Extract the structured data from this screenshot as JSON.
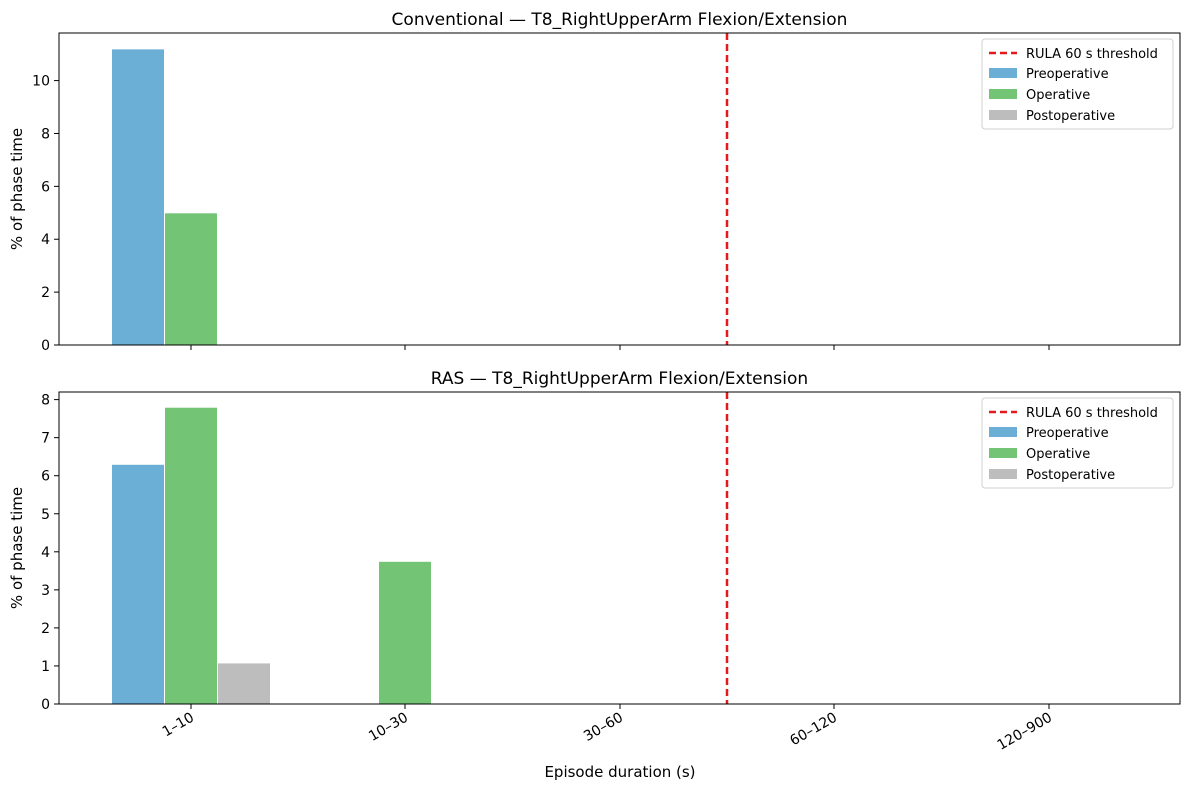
{
  "figure": {
    "shared_xlabel": "Episode duration (s)",
    "threshold_label": "RULA 60 s threshold",
    "threshold_color": "#e31a1c"
  },
  "chart_data": [
    {
      "type": "bar",
      "title": "Conventional — T8_RightUpperArm Flexion/Extension",
      "ylabel": "% of phase time",
      "xlabel": "",
      "categories": [
        "1–10",
        "10–30",
        "30–60",
        "60–120",
        "120–900"
      ],
      "ylim": [
        0,
        11.8
      ],
      "yticks": [
        0,
        2,
        4,
        6,
        8,
        10
      ],
      "threshold_x_seconds": 60,
      "legend_position": "top-right",
      "show_xtick_labels": false,
      "series": [
        {
          "name": "Preoperative",
          "color": "#6baed6",
          "values": [
            11.2,
            0,
            0,
            0,
            0
          ]
        },
        {
          "name": "Operative",
          "color": "#74c476",
          "values": [
            5.0,
            0,
            0,
            0,
            0
          ]
        },
        {
          "name": "Postoperative",
          "color": "#bdbdbd",
          "values": [
            0,
            0,
            0,
            0,
            0
          ]
        }
      ]
    },
    {
      "type": "bar",
      "title": "RAS — T8_RightUpperArm Flexion/Extension",
      "ylabel": "% of phase time",
      "xlabel": "Episode duration (s)",
      "categories": [
        "1–10",
        "10–30",
        "30–60",
        "60–120",
        "120–900"
      ],
      "ylim": [
        0,
        8.2
      ],
      "yticks": [
        0,
        1,
        2,
        3,
        4,
        5,
        6,
        7,
        8
      ],
      "threshold_x_seconds": 60,
      "legend_position": "top-right",
      "show_xtick_labels": true,
      "series": [
        {
          "name": "Preoperative",
          "color": "#6baed6",
          "values": [
            6.3,
            0,
            0,
            0,
            0
          ]
        },
        {
          "name": "Operative",
          "color": "#74c476",
          "values": [
            7.8,
            3.75,
            0,
            0,
            0
          ]
        },
        {
          "name": "Postoperative",
          "color": "#bdbdbd",
          "values": [
            1.08,
            0,
            0,
            0,
            0
          ]
        }
      ]
    }
  ]
}
